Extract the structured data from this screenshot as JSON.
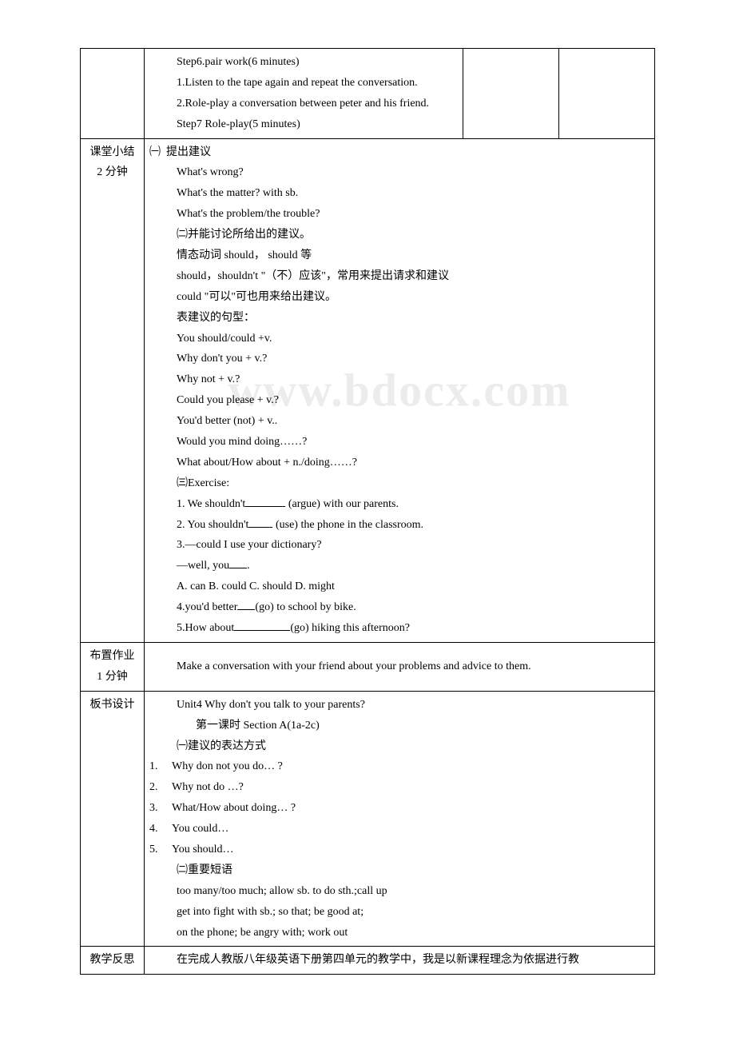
{
  "row1": {
    "step6_title": "Step6.pair work(6 minutes)",
    "step6_1": "1.Listen to the tape again and repeat the conversation.",
    "step6_2": "2.Role-play a conversation between peter and his friend.",
    "step7": "Step7 Role-play(5 minutes)"
  },
  "summary": {
    "label_line1": "课堂小结",
    "label_line2": "2 分钟",
    "sec1_title": "提出建议",
    "q1": "What's wrong?",
    "q2": "What's the matter? with sb.",
    "q3": "What's the problem/the trouble?",
    "sec2_title": "㈡并能讨论所给出的建议。",
    "modal": "情态动词 should， should 等",
    "should_line": "should，shouldn't \"（不）应该\"，常用来提出请求和建议",
    "could_line": "could \"可以\"可也用来给出建议。",
    "pattern_title": "表建议的句型：",
    "p1": "You should/could +v.",
    "p2": "Why don't you + v.?",
    "p3": "Why not + v.?",
    "p4": "Could you please + v.?",
    "p5": "You'd better (not) + v..",
    "p6": "Would you mind doing……?",
    "p7": "What about/How about + n./doing……?",
    "ex_title": "㈢Exercise:",
    "ex1_a": "1. We shouldn't",
    "ex1_b": " (argue) with our parents.",
    "ex2_a": "2. You shouldn't",
    "ex2_b": " (use) the phone in the classroom.",
    "ex3": "3.—could I use your dictionary?",
    "ex3r_a": "—well, you",
    "ex3r_b": ".",
    "ex3opts": "A. can B. could C. should D. might",
    "ex4_a": "4.you'd better",
    "ex4_b": "(go) to school by bike.",
    "ex5_a": "5.How about",
    "ex5_b": "(go) hiking this afternoon?",
    "watermark": "www.bdocx.com"
  },
  "homework": {
    "label_line1": "布置作业",
    "label_line2": "1 分钟",
    "text": "Make a conversation with your friend about your problems and advice to them."
  },
  "board": {
    "label": "板书设计",
    "title": "Unit4 Why don't you talk to your parents?",
    "subtitle": "第一课时  Section A(1a-2c)",
    "sec1": "㈠建议的表达方式",
    "i1": "Why don not you do… ?",
    "i2": "Why not do …?",
    "i3": "What/How about doing… ?",
    "i4": "You could…",
    "i5": "You should…",
    "sec2": "㈡重要短语",
    "ph1": "too many/too much; allow sb. to do sth.;call up",
    "ph2": "get into fight with sb.; so that; be good at;",
    "ph3": "on the phone; be angry with; work out"
  },
  "reflection": {
    "label": "教学反思",
    "text": "在完成人教版八年级英语下册第四单元的教学中，我是以新课程理念为依据进行教"
  }
}
